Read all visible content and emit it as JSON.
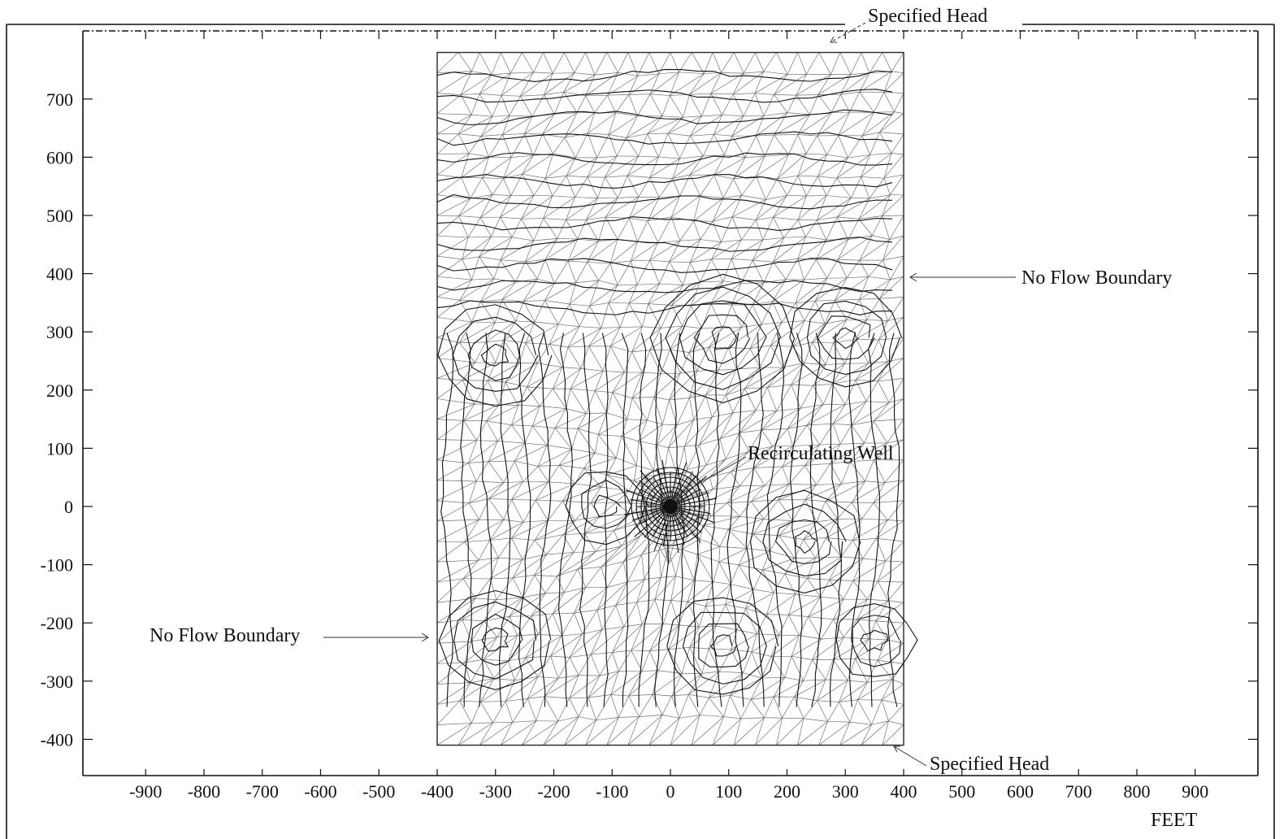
{
  "figure": {
    "x_ticks": [
      "-900",
      "-800",
      "-700",
      "-600",
      "-500",
      "-400",
      "-300",
      "-200",
      "-100",
      "0",
      "100",
      "200",
      "300",
      "400",
      "500",
      "600",
      "700",
      "800",
      "900"
    ],
    "y_ticks": [
      "700",
      "600",
      "500",
      "400",
      "300",
      "200",
      "100",
      "0",
      "-100",
      "-200",
      "-300",
      "-400"
    ],
    "x_unit_label": "FEET",
    "annotations": {
      "top": "Specified Head",
      "right": "No Flow Boundary",
      "left": "No Flow Boundary",
      "well": "Recirculating Well",
      "bottom": "Specified Head"
    },
    "model_domain": {
      "x_range": [
        -400,
        400
      ],
      "y_range": [
        -410,
        780
      ]
    },
    "well_location": {
      "x": 0,
      "y": 0
    }
  }
}
